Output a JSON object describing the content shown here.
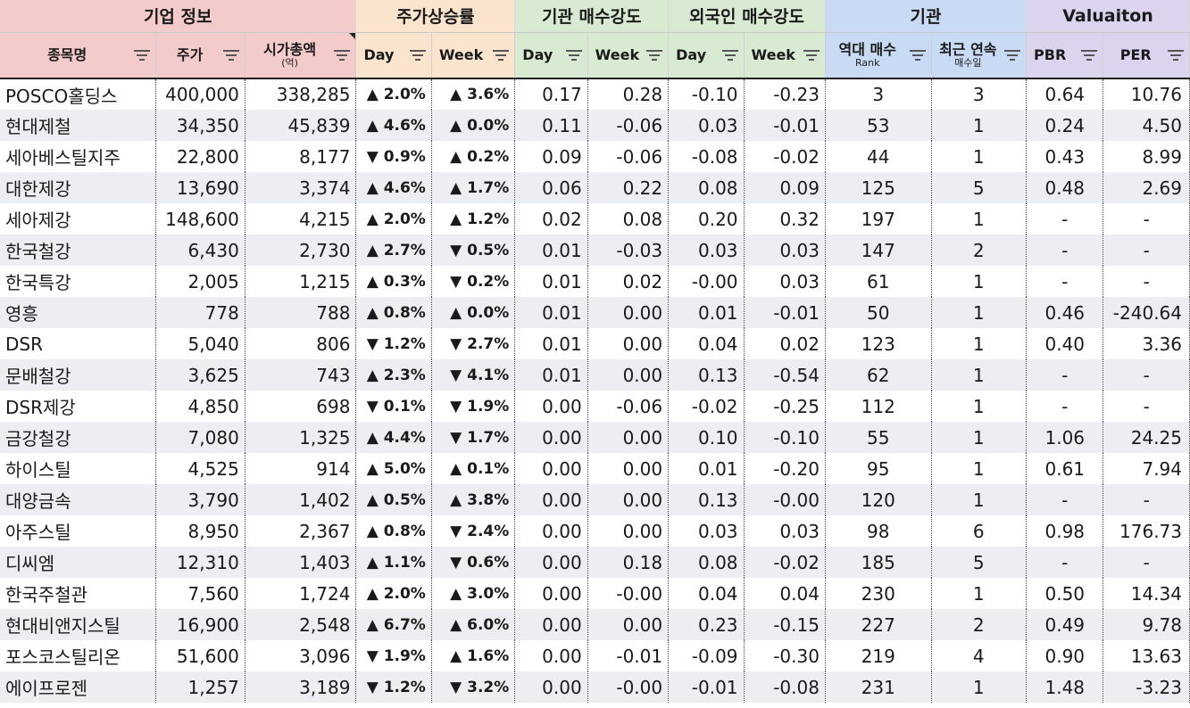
{
  "groups": [
    {
      "label": "기업 정보",
      "span": 3,
      "cls": "c-red"
    },
    {
      "label": "주가상승률",
      "span": 2,
      "cls": "c-org"
    },
    {
      "label": "기관 매수강도",
      "span": 2,
      "cls": "c-grn"
    },
    {
      "label": "외국인 매수강도",
      "span": 2,
      "cls": "c-grn"
    },
    {
      "label": "기관",
      "span": 2,
      "cls": "c-blu"
    },
    {
      "label": "Valuaiton",
      "span": 2,
      "cls": "c-pur"
    }
  ],
  "columns": [
    {
      "label": "종목명",
      "cls": "c-red",
      "w": 174
    },
    {
      "label": "주가",
      "cls": "c-red",
      "w": 99
    },
    {
      "label": "시가총액",
      "sub": "(억)",
      "cls": "c-red",
      "w": 124,
      "mark": true
    },
    {
      "label": "Day",
      "cls": "c-org",
      "w": 84,
      "left": true
    },
    {
      "label": "Week",
      "cls": "c-org",
      "w": 93,
      "left": true
    },
    {
      "label": "Day",
      "cls": "c-grn",
      "w": 81,
      "left": true
    },
    {
      "label": "Week",
      "cls": "c-grn",
      "w": 90,
      "left": true
    },
    {
      "label": "Day",
      "cls": "c-grn",
      "w": 84,
      "left": true
    },
    {
      "label": "Week",
      "cls": "c-grn",
      "w": 91,
      "left": true
    },
    {
      "label": "역대 매수",
      "sub": "Rank",
      "cls": "c-blu",
      "w": 118
    },
    {
      "label": "최근 연속",
      "sub": "매수일",
      "cls": "c-blu",
      "w": 106
    },
    {
      "label": "PBR",
      "cls": "c-pur",
      "w": 86,
      "left": true
    },
    {
      "label": "PER",
      "cls": "c-pur",
      "w": 96
    }
  ],
  "rows": [
    {
      "name": "POSCO홀딩스",
      "price": "400,000",
      "cap": "338,285",
      "dd": "up",
      "dv": "2.0%",
      "wd": "up",
      "wv": "3.6%",
      "iday": "0.17",
      "iweek": "0.28",
      "fday": "-0.10",
      "fweek": "-0.23",
      "rank": "3",
      "streak": "3",
      "pbr": "0.64",
      "per": "10.76"
    },
    {
      "name": "현대제철",
      "price": "34,350",
      "cap": "45,839",
      "dd": "up",
      "dv": "4.6%",
      "wd": "up",
      "wv": "0.0%",
      "iday": "0.11",
      "iweek": "-0.06",
      "fday": "0.03",
      "fweek": "-0.01",
      "rank": "53",
      "streak": "1",
      "pbr": "0.24",
      "per": "4.50"
    },
    {
      "name": "세아베스틸지주",
      "price": "22,800",
      "cap": "8,177",
      "dd": "down",
      "dv": "0.9%",
      "wd": "up",
      "wv": "0.2%",
      "iday": "0.09",
      "iweek": "-0.06",
      "fday": "-0.08",
      "fweek": "-0.02",
      "rank": "44",
      "streak": "1",
      "pbr": "0.43",
      "per": "8.99"
    },
    {
      "name": "대한제강",
      "price": "13,690",
      "cap": "3,374",
      "dd": "up",
      "dv": "4.6%",
      "wd": "up",
      "wv": "1.7%",
      "iday": "0.06",
      "iweek": "0.22",
      "fday": "0.08",
      "fweek": "0.09",
      "rank": "125",
      "streak": "5",
      "pbr": "0.48",
      "per": "2.69"
    },
    {
      "name": "세아제강",
      "price": "148,600",
      "cap": "4,215",
      "dd": "up",
      "dv": "2.0%",
      "wd": "up",
      "wv": "1.2%",
      "iday": "0.02",
      "iweek": "0.08",
      "fday": "0.20",
      "fweek": "0.32",
      "rank": "197",
      "streak": "1",
      "pbr": "-",
      "per": "-"
    },
    {
      "name": "한국철강",
      "price": "6,430",
      "cap": "2,730",
      "dd": "up",
      "dv": "2.7%",
      "wd": "down",
      "wv": "0.5%",
      "iday": "0.01",
      "iweek": "-0.03",
      "fday": "0.03",
      "fweek": "0.03",
      "rank": "147",
      "streak": "2",
      "pbr": "-",
      "per": "-"
    },
    {
      "name": "한국특강",
      "price": "2,005",
      "cap": "1,215",
      "dd": "up",
      "dv": "0.3%",
      "wd": "down",
      "wv": "0.2%",
      "iday": "0.01",
      "iweek": "0.02",
      "fday": "-0.00",
      "fweek": "0.03",
      "rank": "61",
      "streak": "1",
      "pbr": "-",
      "per": "-"
    },
    {
      "name": "영흥",
      "price": "778",
      "cap": "788",
      "dd": "up",
      "dv": "0.8%",
      "wd": "up",
      "wv": "0.0%",
      "iday": "0.01",
      "iweek": "0.00",
      "fday": "0.01",
      "fweek": "-0.01",
      "rank": "50",
      "streak": "1",
      "pbr": "0.46",
      "per": "-240.64"
    },
    {
      "name": "DSR",
      "price": "5,040",
      "cap": "806",
      "dd": "down",
      "dv": "1.2%",
      "wd": "down",
      "wv": "2.7%",
      "iday": "0.01",
      "iweek": "0.00",
      "fday": "0.04",
      "fweek": "0.02",
      "rank": "123",
      "streak": "1",
      "pbr": "0.40",
      "per": "3.36"
    },
    {
      "name": "문배철강",
      "price": "3,625",
      "cap": "743",
      "dd": "up",
      "dv": "2.3%",
      "wd": "down",
      "wv": "4.1%",
      "iday": "0.01",
      "iweek": "0.00",
      "fday": "0.13",
      "fweek": "-0.54",
      "rank": "62",
      "streak": "1",
      "pbr": "-",
      "per": "-"
    },
    {
      "name": "DSR제강",
      "price": "4,850",
      "cap": "698",
      "dd": "down",
      "dv": "0.1%",
      "wd": "down",
      "wv": "1.9%",
      "iday": "0.00",
      "iweek": "-0.06",
      "fday": "-0.02",
      "fweek": "-0.25",
      "rank": "112",
      "streak": "1",
      "pbr": "-",
      "per": "-"
    },
    {
      "name": "금강철강",
      "price": "7,080",
      "cap": "1,325",
      "dd": "up",
      "dv": "4.4%",
      "wd": "down",
      "wv": "1.7%",
      "iday": "0.00",
      "iweek": "0.00",
      "fday": "0.10",
      "fweek": "-0.10",
      "rank": "55",
      "streak": "1",
      "pbr": "1.06",
      "per": "24.25"
    },
    {
      "name": "하이스틸",
      "price": "4,525",
      "cap": "914",
      "dd": "up",
      "dv": "5.0%",
      "wd": "up",
      "wv": "0.1%",
      "iday": "0.00",
      "iweek": "0.00",
      "fday": "0.01",
      "fweek": "-0.20",
      "rank": "95",
      "streak": "1",
      "pbr": "0.61",
      "per": "7.94"
    },
    {
      "name": "대양금속",
      "price": "3,790",
      "cap": "1,402",
      "dd": "up",
      "dv": "0.5%",
      "wd": "up",
      "wv": "3.8%",
      "iday": "0.00",
      "iweek": "0.00",
      "fday": "0.13",
      "fweek": "-0.00",
      "rank": "120",
      "streak": "1",
      "pbr": "-",
      "per": "-"
    },
    {
      "name": "아주스틸",
      "price": "8,950",
      "cap": "2,367",
      "dd": "up",
      "dv": "0.8%",
      "wd": "down",
      "wv": "2.4%",
      "iday": "0.00",
      "iweek": "0.00",
      "fday": "0.03",
      "fweek": "0.03",
      "rank": "98",
      "streak": "6",
      "pbr": "0.98",
      "per": "176.73"
    },
    {
      "name": "디씨엠",
      "price": "12,310",
      "cap": "1,403",
      "dd": "up",
      "dv": "1.1%",
      "wd": "down",
      "wv": "0.6%",
      "iday": "0.00",
      "iweek": "0.18",
      "fday": "0.08",
      "fweek": "-0.02",
      "rank": "185",
      "streak": "5",
      "pbr": "-",
      "per": "-"
    },
    {
      "name": "한국주철관",
      "price": "7,560",
      "cap": "1,724",
      "dd": "up",
      "dv": "2.0%",
      "wd": "up",
      "wv": "3.0%",
      "iday": "0.00",
      "iweek": "-0.00",
      "fday": "0.04",
      "fweek": "0.04",
      "rank": "230",
      "streak": "1",
      "pbr": "0.50",
      "per": "14.34"
    },
    {
      "name": "현대비앤지스틸",
      "price": "16,900",
      "cap": "2,548",
      "dd": "up",
      "dv": "6.7%",
      "wd": "up",
      "wv": "6.0%",
      "iday": "0.00",
      "iweek": "0.00",
      "fday": "0.23",
      "fweek": "-0.15",
      "rank": "227",
      "streak": "2",
      "pbr": "0.49",
      "per": "9.78"
    },
    {
      "name": "포스코스틸리온",
      "price": "51,600",
      "cap": "3,096",
      "dd": "down",
      "dv": "1.9%",
      "wd": "up",
      "wv": "1.6%",
      "iday": "0.00",
      "iweek": "-0.01",
      "fday": "-0.09",
      "fweek": "-0.30",
      "rank": "219",
      "streak": "4",
      "pbr": "0.90",
      "per": "13.63"
    },
    {
      "name": "에이프로젠",
      "price": "1,257",
      "cap": "3,189",
      "dd": "down",
      "dv": "1.2%",
      "wd": "down",
      "wv": "3.2%",
      "iday": "0.00",
      "iweek": "-0.00",
      "fday": "-0.01",
      "fweek": "-0.08",
      "rank": "231",
      "streak": "1",
      "pbr": "1.48",
      "per": "-3.23"
    }
  ]
}
